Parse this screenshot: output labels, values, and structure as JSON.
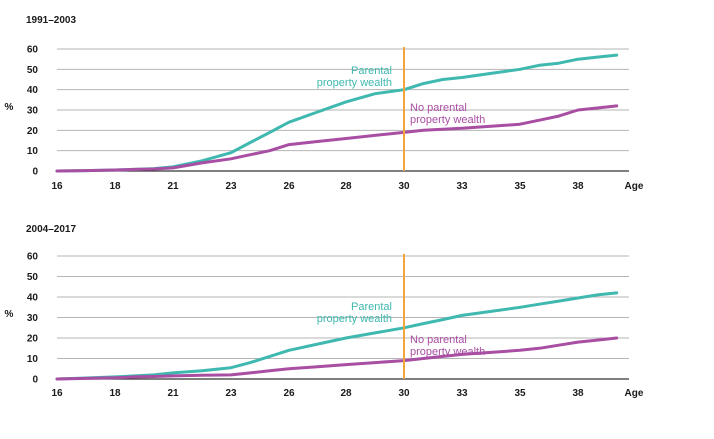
{
  "chart_data": [
    {
      "type": "line",
      "title": "1991–2003",
      "ylabel": "%",
      "xlabel_unit": "Age",
      "x_ticks": [
        16,
        18,
        21,
        23,
        26,
        28,
        30,
        33,
        35,
        38
      ],
      "y_ticks": [
        0,
        10,
        20,
        30,
        40,
        50,
        60
      ],
      "ylim": [
        0,
        60
      ],
      "xlim": [
        16,
        40
      ],
      "grid": true,
      "marker_x": 30,
      "marker_color": "#f4a43c",
      "series": [
        {
          "name": "Parental property wealth",
          "label_lines": [
            "Parental",
            "property wealth"
          ],
          "color": "#3fb8b0",
          "x": [
            16,
            17,
            18,
            19,
            20,
            21,
            22,
            23,
            24,
            25,
            26,
            27,
            28,
            29,
            30,
            31,
            32,
            33,
            34,
            35,
            36,
            37,
            38,
            39,
            40
          ],
          "values": [
            0,
            0.2,
            0.5,
            0.8,
            1.2,
            2,
            5,
            9,
            14,
            19,
            24,
            29,
            34,
            38,
            40,
            43,
            45,
            46,
            48,
            50,
            52,
            53,
            55,
            56,
            57
          ]
        },
        {
          "name": "No parental property wealth",
          "label_lines": [
            "No parental",
            "property wealth"
          ],
          "color": "#a84ea3",
          "x": [
            16,
            17,
            18,
            19,
            20,
            21,
            22,
            23,
            24,
            25,
            26,
            27,
            28,
            29,
            30,
            31,
            32,
            33,
            34,
            35,
            36,
            37,
            38,
            39,
            40
          ],
          "values": [
            0,
            0.2,
            0.5,
            0.8,
            1,
            1.5,
            4,
            6,
            8,
            10,
            13,
            14.5,
            16,
            17.5,
            19,
            20,
            20.5,
            21,
            22,
            23,
            25,
            27,
            30,
            31,
            32
          ]
        }
      ]
    },
    {
      "type": "line",
      "title": "2004–2017",
      "ylabel": "%",
      "xlabel_unit": "Age",
      "x_ticks": [
        16,
        18,
        21,
        23,
        26,
        28,
        30,
        33,
        35,
        38
      ],
      "y_ticks": [
        0,
        10,
        20,
        30,
        40,
        50,
        60
      ],
      "ylim": [
        0,
        60
      ],
      "xlim": [
        16,
        40
      ],
      "grid": true,
      "marker_x": 30,
      "marker_color": "#f4a43c",
      "series": [
        {
          "name": "Parental property wealth",
          "label_lines": [
            "Parental",
            "property wealth"
          ],
          "color": "#3fb8b0",
          "x": [
            16,
            17,
            18,
            19,
            20,
            21,
            22,
            23,
            24,
            25,
            26,
            27,
            28,
            29,
            30,
            31,
            32,
            33,
            34,
            35,
            36,
            37,
            38,
            39,
            40
          ],
          "values": [
            0,
            0.5,
            1,
            1.5,
            2,
            3,
            4,
            5.5,
            8,
            11,
            14,
            17,
            20,
            22.5,
            25,
            27,
            29,
            31,
            33,
            35,
            36.5,
            38,
            39.5,
            41,
            42
          ]
        },
        {
          "name": "No parental property wealth",
          "label_lines": [
            "No parental",
            "property wealth"
          ],
          "color": "#a84ea3",
          "x": [
            16,
            17,
            18,
            19,
            20,
            21,
            22,
            23,
            24,
            25,
            26,
            27,
            28,
            29,
            30,
            31,
            32,
            33,
            34,
            35,
            36,
            37,
            38,
            39,
            40
          ],
          "values": [
            0,
            0.3,
            0.6,
            1,
            1.2,
            1.5,
            1.8,
            2,
            3,
            4,
            5,
            6,
            7,
            8,
            9,
            10,
            11,
            12,
            13,
            14,
            15,
            16.5,
            18,
            19,
            20
          ]
        }
      ]
    }
  ]
}
